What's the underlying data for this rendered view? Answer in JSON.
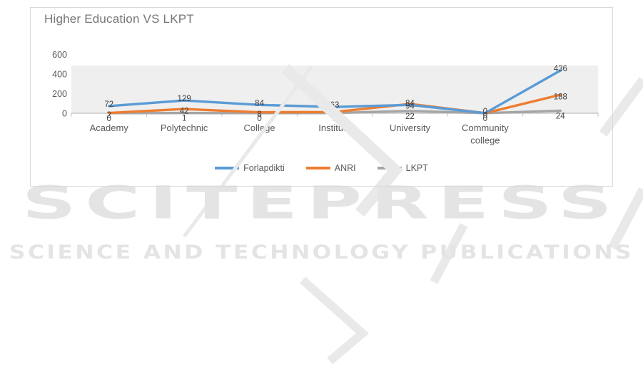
{
  "watermark": {
    "big": "SCITEPRESS",
    "tagline": "SCIENCE AND TECHNOLOGY PUBLICATIONS"
  },
  "chart_data": {
    "type": "line",
    "title": "Higher Education VS LKPT",
    "categories": [
      "Academy",
      "Polytechnic",
      "College",
      "Institute",
      "University",
      "Community college",
      ""
    ],
    "series": [
      {
        "name": "Forlapdikti",
        "color": "#5B9BD5",
        "values": [
          72,
          129,
          84,
          63,
          84,
          0,
          436
        ]
      },
      {
        "name": "ANRI",
        "color": "#ED7D31",
        "values": [
          2,
          42,
          8,
          11,
          94,
          0,
          188
        ]
      },
      {
        "name": "LKPT",
        "color": "#A5A5A5",
        "values": [
          0,
          1,
          0,
          1,
          22,
          0,
          24
        ]
      }
    ],
    "y_ticks": [
      600,
      400,
      200,
      0
    ],
    "ylim": [
      0,
      600
    ],
    "data_labels": true,
    "grid": false,
    "legend_position": "bottom",
    "plot_background": "#efefef",
    "axis_color": "#bfbfbf",
    "text_color": "#595959",
    "label_color": "#404040",
    "frame_border_color": "#d9d9d9",
    "watermark_color": "#e7e7e7"
  }
}
